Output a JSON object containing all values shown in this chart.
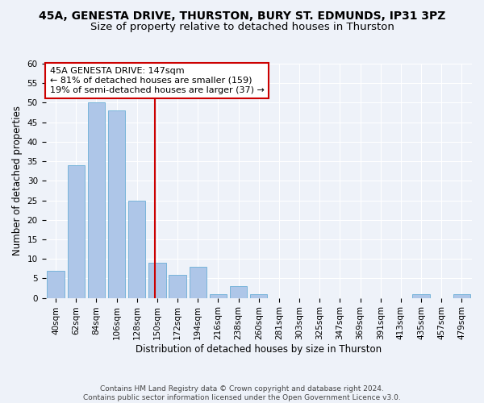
{
  "title": "45A, GENESTA DRIVE, THURSTON, BURY ST. EDMUNDS, IP31 3PZ",
  "subtitle": "Size of property relative to detached houses in Thurston",
  "xlabel": "Distribution of detached houses by size in Thurston",
  "ylabel": "Number of detached properties",
  "bins": [
    "40sqm",
    "62sqm",
    "84sqm",
    "106sqm",
    "128sqm",
    "150sqm",
    "172sqm",
    "194sqm",
    "216sqm",
    "238sqm",
    "260sqm",
    "281sqm",
    "303sqm",
    "325sqm",
    "347sqm",
    "369sqm",
    "391sqm",
    "413sqm",
    "435sqm",
    "457sqm",
    "479sqm"
  ],
  "values": [
    7,
    34,
    50,
    48,
    25,
    9,
    6,
    8,
    1,
    3,
    1,
    0,
    0,
    0,
    0,
    0,
    0,
    0,
    1,
    0,
    1
  ],
  "bar_color": "#aec6e8",
  "bar_edge_color": "#6aaed6",
  "property_line_color": "#cc0000",
  "annotation_line1": "45A GENESTA DRIVE: 147sqm",
  "annotation_line2": "← 81% of detached houses are smaller (159)",
  "annotation_line3": "19% of semi-detached houses are larger (37) →",
  "annotation_box_color": "#ffffff",
  "annotation_box_edge": "#cc0000",
  "ylim": [
    0,
    60
  ],
  "yticks": [
    0,
    5,
    10,
    15,
    20,
    25,
    30,
    35,
    40,
    45,
    50,
    55,
    60
  ],
  "footer_text": "Contains HM Land Registry data © Crown copyright and database right 2024.\nContains public sector information licensed under the Open Government Licence v3.0.",
  "background_color": "#eef2f9",
  "grid_color": "#ffffff",
  "title_fontsize": 10,
  "subtitle_fontsize": 9.5,
  "axis_label_fontsize": 8.5,
  "tick_fontsize": 7.5,
  "annotation_fontsize": 8,
  "footer_fontsize": 6.5
}
